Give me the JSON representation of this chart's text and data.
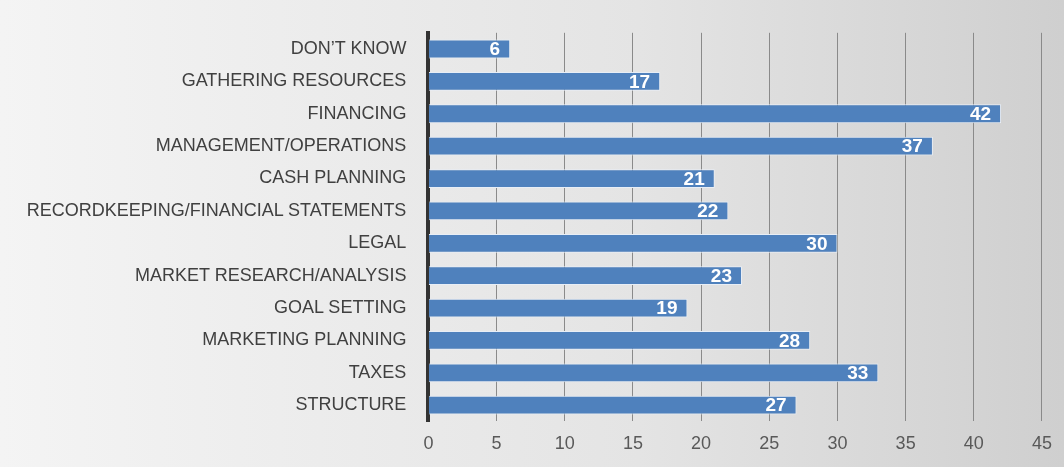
{
  "chart_data": {
    "type": "bar",
    "orientation": "horizontal",
    "categories": [
      "DON’T KNOW",
      "GATHERING RESOURCES",
      "FINANCING",
      "MANAGEMENT/OPERATIONS",
      "CASH PLANNING",
      "RECORDKEEPING/FINANCIAL STATEMENTS",
      "LEGAL",
      "MARKET RESEARCH/ANALYSIS",
      "GOAL SETTING",
      "MARKETING PLANNING",
      "TAXES",
      "STRUCTURE"
    ],
    "values": [
      6,
      17,
      42,
      37,
      21,
      22,
      30,
      23,
      19,
      28,
      33,
      27
    ],
    "color": "#4f81bd",
    "xlim": [
      0,
      45
    ],
    "xticks": [
      0,
      5,
      10,
      15,
      20,
      25,
      30,
      35,
      40,
      45
    ],
    "grid": "x",
    "data_labels": true
  }
}
